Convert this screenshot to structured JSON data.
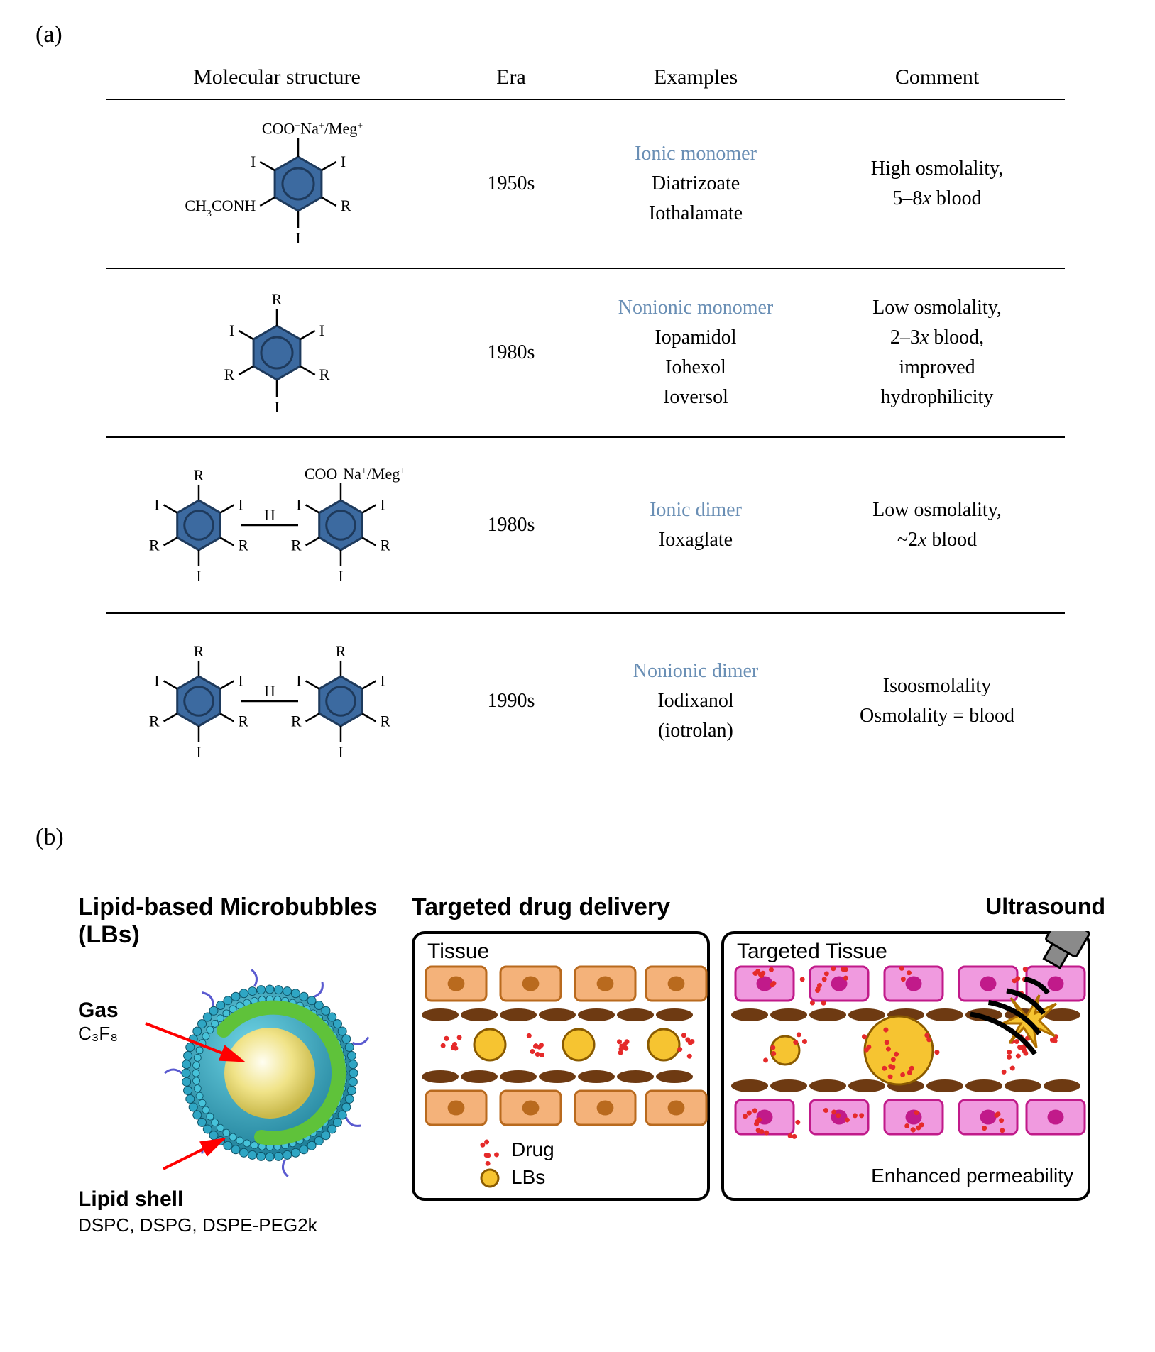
{
  "labels": {
    "panel_a": "(a)",
    "panel_b": "(b)"
  },
  "table": {
    "headers": {
      "structure": "Molecular structure",
      "era": "Era",
      "examples": "Examples",
      "comment": "Comment"
    },
    "rows": [
      {
        "era": "1950s",
        "category": "Ionic monomer",
        "examples": [
          "Diatrizoate",
          "Iothalamate"
        ],
        "comment_lines": [
          "High osmolality,",
          "5–8x blood"
        ],
        "structure": {
          "type": "monomer",
          "top": "COO⁻Na⁺/Meg⁺",
          "upper_left": "I",
          "upper_right": "I",
          "lower_left": "CH₃CONH",
          "lower_right": "R",
          "bottom": "I"
        }
      },
      {
        "era": "1980s",
        "category": "Nonionic monomer",
        "examples": [
          "Iopamidol",
          "Iohexol",
          "Ioversol"
        ],
        "comment_lines": [
          "Low osmolality,",
          "2–3x blood,",
          "improved",
          "hydrophilicity"
        ],
        "structure": {
          "type": "monomer",
          "top": "R",
          "upper_left": "I",
          "upper_right": "I",
          "lower_left": "R",
          "lower_right": "R",
          "bottom": "I"
        }
      },
      {
        "era": "1980s",
        "category": "Ionic dimer",
        "examples": [
          "Ioxaglate"
        ],
        "comment_lines": [
          "Low osmolality,",
          "~2x blood"
        ],
        "structure": {
          "type": "dimer",
          "left": {
            "top": "R",
            "ul": "I",
            "ur": "I",
            "ll": "R",
            "lr": "R",
            "bottom": "I"
          },
          "right": {
            "top": "COO⁻Na⁺/Meg⁺",
            "ul": "I",
            "ur": "I",
            "ll": "R",
            "lr": "R",
            "bottom": "I"
          }
        }
      },
      {
        "era": "1990s",
        "category": "Nonionic dimer",
        "examples": [
          "Iodixanol",
          "(iotrolan)"
        ],
        "comment_lines": [
          "Isoosmolality",
          "Osmolality = blood"
        ],
        "structure": {
          "type": "dimer",
          "left": {
            "top": "R",
            "ul": "I",
            "ur": "I",
            "ll": "R",
            "lr": "R",
            "bottom": "I"
          },
          "right": {
            "top": "R",
            "ul": "I",
            "ur": "I",
            "ll": "R",
            "lr": "R",
            "bottom": "I"
          }
        }
      }
    ],
    "colors": {
      "ring_fill": "#3c6aa0",
      "ring_stroke": "#1e3a5c",
      "bond": "#000000",
      "category_text": "#6a8fb5"
    }
  },
  "panel_b": {
    "lbs": {
      "title": "Lipid-based Microbubbles (LBs)",
      "gas_label": "Gas",
      "gas_formula": "C₃F₈",
      "shell_label": "Lipid shell",
      "shell_list": "DSPC, DSPG, DSPE-PEG2k",
      "colors": {
        "shell_outer": "#2fa6c4",
        "shell_mid": "#3cc5d6",
        "inner_ring": "#5fc23a",
        "core_light": "#fffbe0",
        "core_mid": "#f0e388",
        "arrow": "#ff0000",
        "squiggle": "#5a5ad0"
      }
    },
    "delivery": {
      "title": "Targeted drug delivery",
      "tissue_label": "Tissue",
      "targeted_label": "Targeted Tissue",
      "enhanced_label": "Enhanced permeability",
      "ultrasound_label": "Ultrasound",
      "legend": {
        "drug": "Drug",
        "lbs": "LBs"
      },
      "colors": {
        "panel_border": "#000000",
        "cell_orange_fill": "#f4b27a",
        "cell_orange_stroke": "#b96a1e",
        "cell_pink_fill": "#f09adf",
        "cell_pink_stroke": "#c11a8a",
        "vessel": "#6e3a12",
        "drug_dot": "#e52a2a",
        "lb_fill": "#f6c431",
        "lb_stroke": "#8a5a00",
        "us_probe": "#8a8a8a",
        "burst": "#f0a500"
      }
    }
  }
}
